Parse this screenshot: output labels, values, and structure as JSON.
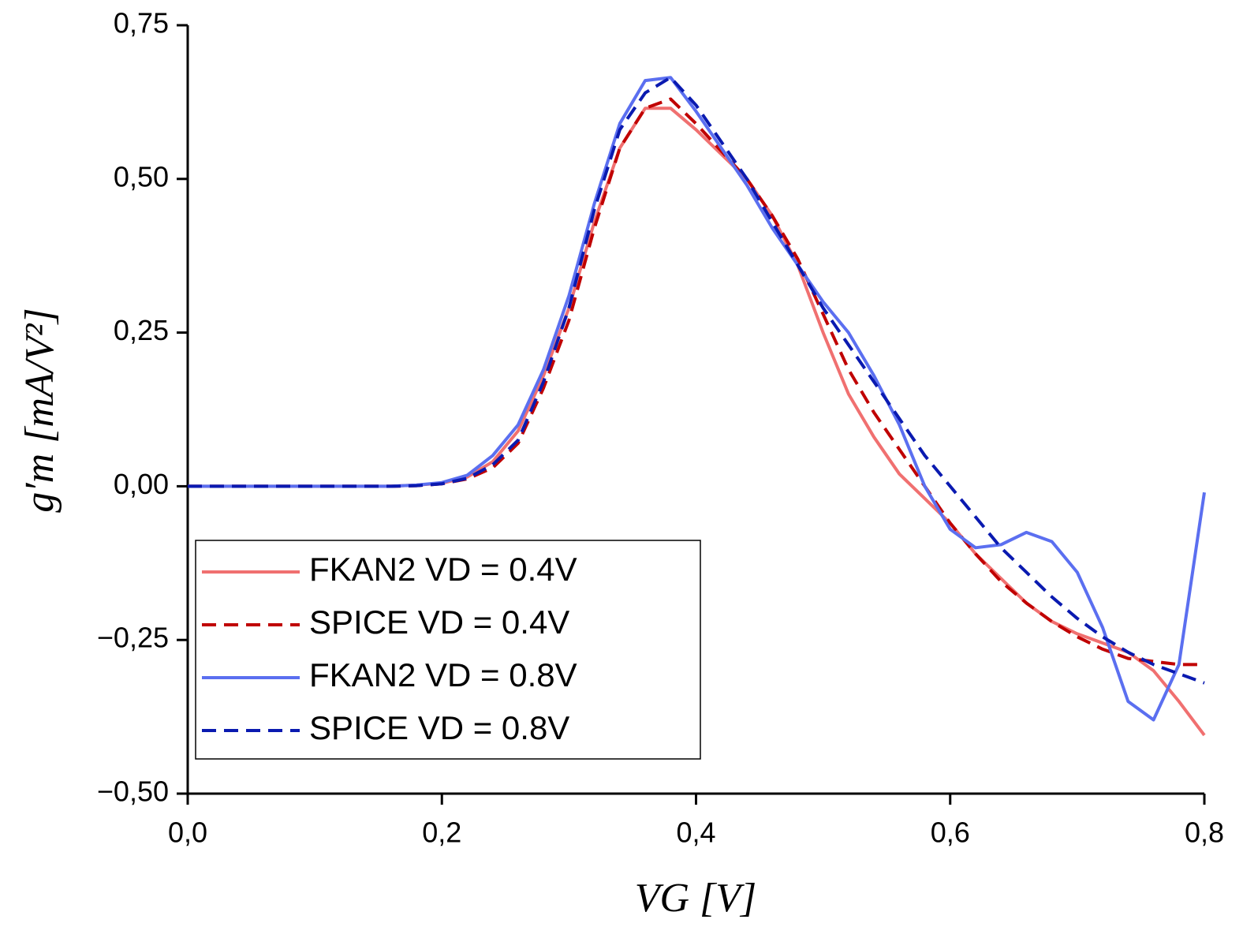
{
  "chart_data": {
    "type": "line",
    "x_label": "VG [V]",
    "y_label": "g′m [mA/V²]",
    "x": [
      0,
      0.02,
      0.04,
      0.06,
      0.08,
      0.1,
      0.12,
      0.14,
      0.16,
      0.18,
      0.2,
      0.22,
      0.24,
      0.26,
      0.28,
      0.3,
      0.32,
      0.34,
      0.36,
      0.38,
      0.4,
      0.42,
      0.44,
      0.46,
      0.48,
      0.5,
      0.52,
      0.54,
      0.56,
      0.58,
      0.6,
      0.62,
      0.64,
      0.66,
      0.68,
      0.7,
      0.72,
      0.74,
      0.76,
      0.78,
      0.8
    ],
    "series": [
      {
        "name": "FKAN2 VD = 0.4V",
        "color": "#f07070",
        "dashed": false,
        "values": [
          0,
          0,
          0,
          0,
          0,
          0,
          0,
          0,
          0,
          0.002,
          0.005,
          0.015,
          0.04,
          0.09,
          0.18,
          0.29,
          0.43,
          0.55,
          0.615,
          0.615,
          0.58,
          0.54,
          0.5,
          0.44,
          0.36,
          0.25,
          0.15,
          0.08,
          0.02,
          -0.02,
          -0.06,
          -0.11,
          -0.15,
          -0.19,
          -0.22,
          -0.24,
          -0.255,
          -0.27,
          -0.3,
          -0.35,
          -0.405
        ]
      },
      {
        "name": "SPICE VD = 0.4V",
        "color": "#c00000",
        "dashed": true,
        "values": [
          0,
          0,
          0,
          0,
          0,
          0,
          0,
          0,
          0,
          0.001,
          0.004,
          0.012,
          0.03,
          0.07,
          0.16,
          0.27,
          0.42,
          0.55,
          0.615,
          0.63,
          0.59,
          0.545,
          0.5,
          0.44,
          0.37,
          0.28,
          0.19,
          0.12,
          0.06,
          0,
          -0.06,
          -0.11,
          -0.155,
          -0.19,
          -0.22,
          -0.245,
          -0.265,
          -0.28,
          -0.285,
          -0.29,
          -0.29
        ]
      },
      {
        "name": "FKAN2 VD = 0.8V",
        "color": "#5b6ff0",
        "dashed": false,
        "values": [
          0,
          0,
          0,
          0,
          0,
          0,
          0,
          0,
          0,
          0.002,
          0.006,
          0.018,
          0.05,
          0.1,
          0.19,
          0.31,
          0.46,
          0.59,
          0.66,
          0.665,
          0.61,
          0.55,
          0.49,
          0.42,
          0.36,
          0.3,
          0.25,
          0.18,
          0.1,
          0,
          -0.07,
          -0.1,
          -0.095,
          -0.075,
          -0.09,
          -0.14,
          -0.23,
          -0.35,
          -0.38,
          -0.29,
          -0.01
        ]
      },
      {
        "name": "SPICE VD = 0.8V",
        "color": "#0a1ab0",
        "dashed": true,
        "values": [
          0,
          0,
          0,
          0,
          0,
          0,
          0,
          0,
          0,
          0.001,
          0.004,
          0.013,
          0.035,
          0.075,
          0.17,
          0.29,
          0.45,
          0.58,
          0.64,
          0.665,
          0.62,
          0.56,
          0.5,
          0.43,
          0.36,
          0.29,
          0.23,
          0.17,
          0.11,
          0.05,
          0,
          -0.05,
          -0.1,
          -0.14,
          -0.18,
          -0.215,
          -0.245,
          -0.27,
          -0.29,
          -0.305,
          -0.32
        ]
      }
    ],
    "xlim": [
      0,
      0.8
    ],
    "ylim": [
      -0.5,
      0.75
    ],
    "xticks": [
      {
        "value": 0,
        "label": "0,0"
      },
      {
        "value": 0.2,
        "label": "0,2"
      },
      {
        "value": 0.4,
        "label": "0,4"
      },
      {
        "value": 0.6,
        "label": "0,6"
      },
      {
        "value": 0.8,
        "label": "0,8"
      }
    ],
    "yticks": [
      {
        "value": -0.5,
        "label": "−0,50"
      },
      {
        "value": -0.25,
        "label": "−0,25"
      },
      {
        "value": 0,
        "label": "0,00"
      },
      {
        "value": 0.25,
        "label": "0,25"
      },
      {
        "value": 0.5,
        "label": "0,50"
      },
      {
        "value": 0.75,
        "label": "0,75"
      }
    ],
    "legend": "bottom-left"
  }
}
